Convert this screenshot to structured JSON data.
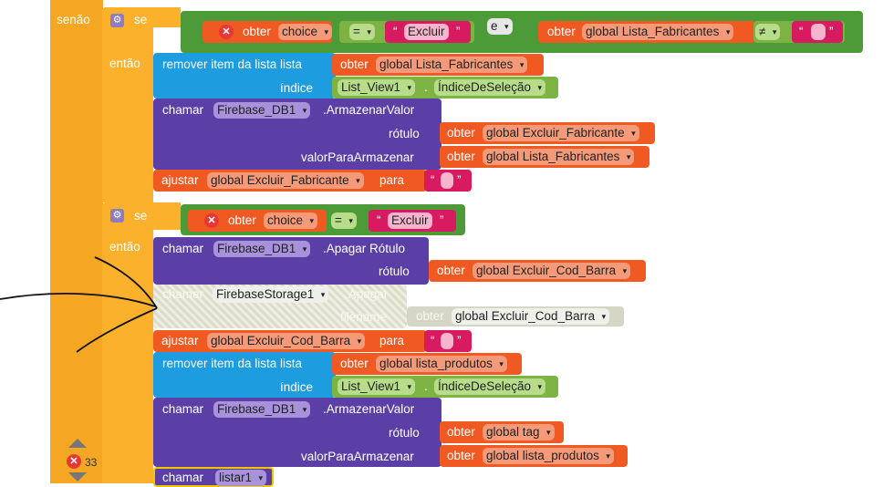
{
  "else_label": "senão",
  "if_label": "se",
  "then_label": "então",
  "and_label": "e",
  "get_label": "obter",
  "call_label": "chamar",
  "set_label": "ajustar",
  "to_label": "para",
  "remove_label": "remover item da lista  lista",
  "index_label": "índice",
  "tag_label": "rótulo",
  "value_label": "valorParaArmazenar",
  "filename_label": "filename",
  "var_choice": "choice",
  "eq_op": "=",
  "neq_op": "≠",
  "str_excluir": "Excluir",
  "var_lista_fab": "global Lista_Fabricantes",
  "var_excluir_fab": "global Excluir_Fabricante",
  "var_excluir_cod": "global Excluir_Cod_Barra",
  "var_lista_prod": "global lista_produtos",
  "var_tag": "global tag",
  "comp_list_view": "List_View1",
  "prop_index": "ÍndiceDeSeleção",
  "comp_firebase": "Firebase_DB1",
  "comp_storage": "FirebaseStorage1",
  "comp_listar": "listar1",
  "method_store": ".ArmazenarValor",
  "method_delete_tag": ".Apagar Rótulo",
  "method_delete": ".Apagar",
  "warning_count": "33",
  "quote_open": "“",
  "quote_close": "”",
  "dot": ".",
  "arrow": "▾"
}
